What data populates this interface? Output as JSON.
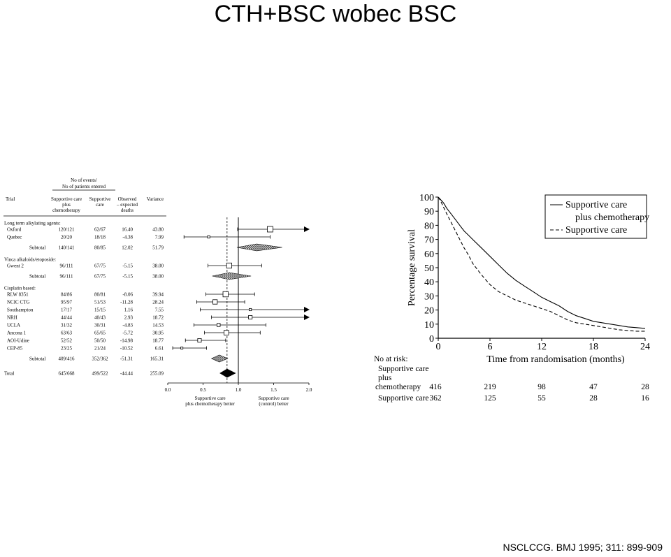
{
  "slide": {
    "title": "CTH+BSC wobec BSC",
    "citation": "NSCLCCG. BMJ 1995; 311: 899-909"
  },
  "chart_data": [
    {
      "type": "forest",
      "header": {
        "events_group": "No of events/",
        "events_group_2": "No of patients entered",
        "col_trial": "Trial",
        "col_chemo": [
          "Supportive care",
          "plus",
          "chemotherapy"
        ],
        "col_support": [
          "Supportive",
          "care"
        ],
        "col_oe": [
          "Observed",
          "– expected",
          "deaths"
        ],
        "col_variance": "Variance"
      },
      "groups": [
        {
          "name": "Long term alkylating agents:",
          "trials": [
            {
              "name": "Oxford",
              "chemo": "120/121",
              "support": "62/67",
              "oe": "16.40",
              "variance": "43.80",
              "hr": 1.45,
              "lo": 0.99,
              "hi": 2.0,
              "arrow": true
            },
            {
              "name": "Quebec",
              "chemo": "20/20",
              "support": "18/18",
              "oe": "-4.38",
              "variance": "7.99",
              "hr": 0.58,
              "lo": 0.23,
              "hi": 1.45,
              "arrow": false
            }
          ],
          "subtotal": {
            "label": "Subtotal",
            "chemo": "140/141",
            "support": "80/85",
            "oe": "12.02",
            "variance": "51.79",
            "hr": 1.26,
            "lo": 0.98,
            "hi": 1.62
          }
        },
        {
          "name": "Vinca alkaloids/etoposide:",
          "trials": [
            {
              "name": "Gwent 2",
              "chemo": "96/111",
              "support": "67/75",
              "oe": "-5.15",
              "variance": "38.00",
              "hr": 0.87,
              "lo": 0.57,
              "hi": 1.33,
              "arrow": false
            }
          ],
          "subtotal": {
            "label": "Subtotal",
            "chemo": "96/111",
            "support": "67/75",
            "oe": "-5.15",
            "variance": "38.00",
            "hr": 0.87,
            "lo": 0.63,
            "hi": 1.18
          }
        },
        {
          "name": "Cisplatin based:",
          "trials": [
            {
              "name": "RLW 8351",
              "chemo": "84/86",
              "support": "80/81",
              "oe": "-8.06",
              "variance": "39.94",
              "hr": 0.82,
              "lo": 0.54,
              "hi": 1.23,
              "arrow": false
            },
            {
              "name": "NCIC CTG",
              "chemo": "95/97",
              "support": "51/53",
              "oe": "-11.28",
              "variance": "28.24",
              "hr": 0.67,
              "lo": 0.41,
              "hi": 1.09,
              "arrow": false
            },
            {
              "name": "Southampton",
              "chemo": "17/17",
              "support": "15/15",
              "oe": "1.16",
              "variance": "7.55",
              "hr": 1.17,
              "lo": 0.46,
              "hi": 2.0,
              "arrow": true
            },
            {
              "name": "NRH",
              "chemo": "44/44",
              "support": "40/43",
              "oe": "2.93",
              "variance": "18.72",
              "hr": 1.17,
              "lo": 0.62,
              "hi": 2.0,
              "arrow": true
            },
            {
              "name": "UCLA",
              "chemo": "31/32",
              "support": "30/31",
              "oe": "-4.83",
              "variance": "14.53",
              "hr": 0.72,
              "lo": 0.37,
              "hi": 1.39,
              "arrow": false
            },
            {
              "name": "Ancona 1",
              "chemo": "63/63",
              "support": "65/65",
              "oe": "-5.72",
              "variance": "30.95",
              "hr": 0.83,
              "lo": 0.52,
              "hi": 1.31,
              "arrow": false
            },
            {
              "name": "AOI-Udine",
              "chemo": "52/52",
              "support": "50/50",
              "oe": "-14.98",
              "variance": "18.77",
              "hr": 0.45,
              "lo": 0.25,
              "hi": 0.82,
              "arrow": false
            },
            {
              "name": "CEP-85",
              "chemo": "23/25",
              "support": "21/24",
              "oe": "-10.52",
              "variance": "6.61",
              "hr": 0.2,
              "lo": 0.07,
              "hi": 0.55,
              "arrow": false
            }
          ],
          "subtotal": {
            "label": "Subtotal",
            "chemo": "409/416",
            "support": "352/362",
            "oe": "-51.31",
            "variance": "165.31",
            "hr": 0.73,
            "lo": 0.62,
            "hi": 0.85
          }
        }
      ],
      "total": {
        "label": "Total",
        "chemo": "645/668",
        "support": "499/522",
        "oe": "-44.44",
        "variance": "255.09",
        "hr": 0.84,
        "lo": 0.74,
        "hi": 0.96
      },
      "xaxis": {
        "ticks": [
          0,
          0.5,
          1.0,
          1.5,
          2.0
        ],
        "tick_labels": [
          "0.0",
          "0.5",
          "1.0",
          "1.5",
          "2.0"
        ],
        "xlim": [
          0,
          2
        ],
        "reference": 1.0,
        "overall_line": 0.84
      },
      "favours_left": [
        "Supportive care",
        "plus chemotherapy better"
      ],
      "favours_right": [
        "Supportive care",
        "(control) better"
      ]
    },
    {
      "type": "line",
      "ylabel": "Percentage survival",
      "xlabel": "Time from randomisation (months)",
      "x_ticks": [
        0,
        6,
        12,
        18,
        24
      ],
      "y_ticks": [
        0,
        10,
        20,
        30,
        40,
        50,
        60,
        70,
        80,
        90,
        100
      ],
      "xlim": [
        0,
        24
      ],
      "ylim": [
        0,
        100
      ],
      "legend_position": "top-right",
      "series": [
        {
          "name": "Supportive care plus chemotherapy",
          "style": "solid",
          "x": [
            0,
            0.3,
            0.6,
            1,
            1.5,
            2,
            2.5,
            3,
            3.5,
            4,
            5,
            6,
            7,
            8,
            9,
            10,
            11,
            12,
            13,
            14,
            15,
            16,
            17,
            18,
            19,
            20,
            21,
            22,
            23,
            24
          ],
          "y": [
            100,
            98,
            96,
            92,
            88,
            84,
            80,
            76,
            73,
            70,
            64,
            58,
            52,
            46,
            41,
            37,
            33,
            29,
            26,
            23,
            19,
            16,
            14,
            12,
            11,
            10,
            9,
            8,
            7.5,
            7
          ]
        },
        {
          "name": "Supportive care",
          "style": "dashed",
          "x": [
            0,
            0.3,
            0.6,
            1,
            1.5,
            2,
            2.5,
            3,
            3.5,
            4,
            5,
            6,
            7,
            8,
            9,
            10,
            11,
            12,
            13,
            14,
            15,
            16,
            17,
            18,
            19,
            20,
            21,
            22,
            23,
            24
          ],
          "y": [
            100,
            97,
            93,
            88,
            82,
            76,
            70,
            64,
            59,
            53,
            45,
            38,
            33,
            30,
            27,
            25,
            23,
            21,
            19,
            16,
            13,
            11,
            10,
            9,
            8,
            7,
            6,
            5.5,
            5,
            5
          ]
        }
      ],
      "at_risk": {
        "label": "No at risk:",
        "rows": [
          {
            "label": [
              "Supportive care",
              "plus",
              "chemotherapy"
            ],
            "values": [
              "416",
              "219",
              "98",
              "47",
              "28"
            ]
          },
          {
            "label": [
              "Supportive care"
            ],
            "values": [
              "362",
              "125",
              "55",
              "28",
              "16"
            ]
          }
        ]
      }
    }
  ]
}
